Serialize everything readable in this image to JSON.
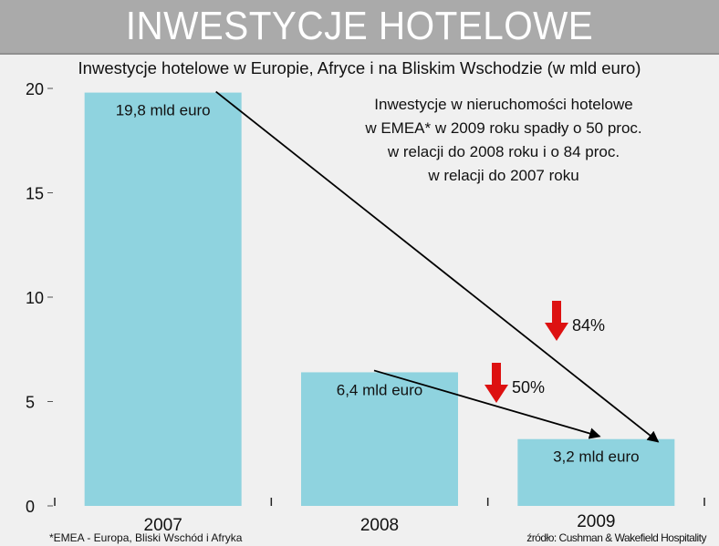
{
  "header": {
    "title": "INWESTYCJE HOTELOWE",
    "subtitle": "Inwestycje hotelowe w Europie, Afryce i na Bliskim Wschodzie (w mld euro)"
  },
  "note_lines": [
    "Inwestycje w nieruchomości hotelowe",
    "w EMEA* w 2009 roku spadły o 50 proc.",
    "w relacji do 2008 roku i o 84 proc.",
    "w relacji do 2007 roku"
  ],
  "footer": {
    "footnote": "*EMEA  - Europa, Bliski Wschód i Afryka",
    "source": "źródło: Cushman & Wakefield Hospitality"
  },
  "chart_data": {
    "type": "bar",
    "categories": [
      "2007",
      "2008",
      "2009"
    ],
    "values": [
      19.8,
      6.4,
      3.2
    ],
    "data_labels": [
      "19,8 mld euro",
      "6,4 mld euro",
      "3,2 mld euro"
    ],
    "ylim": [
      0,
      20
    ],
    "yticks": [
      0,
      5,
      10,
      15,
      20
    ],
    "grid": false,
    "bar_color": "#8fd3df",
    "annotations": [
      {
        "label": "84%",
        "from": "2007",
        "to": "2009"
      },
      {
        "label": "50%",
        "from": "2008",
        "to": "2009"
      }
    ],
    "arrow_color": "#dd1111"
  }
}
